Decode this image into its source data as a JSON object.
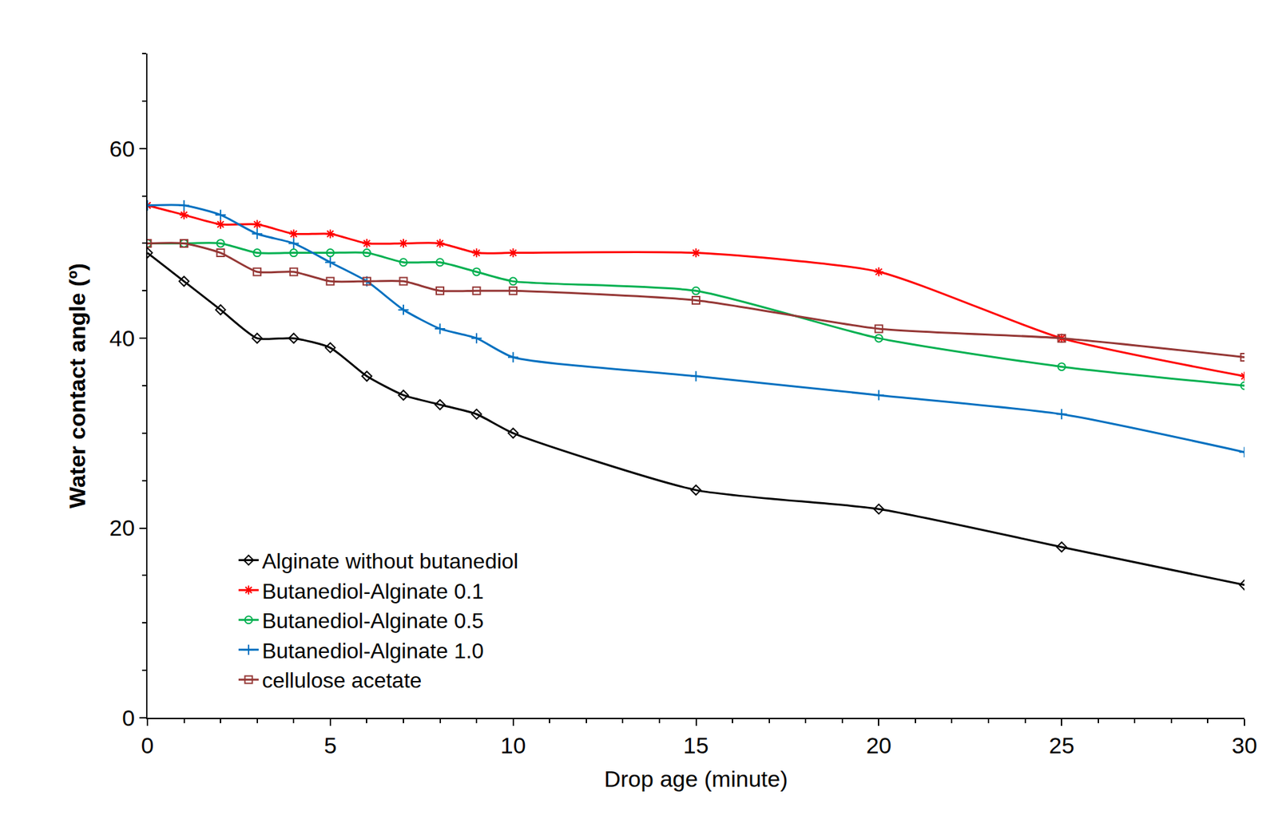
{
  "chart_data": {
    "type": "line",
    "x_label": "Drop age (minute)",
    "y_label": "Water contact angle (º)",
    "x": [
      0,
      1,
      2,
      3,
      4,
      5,
      6,
      7,
      8,
      9,
      10,
      15,
      20,
      25,
      30
    ],
    "xlim": [
      0,
      30
    ],
    "xticks": [
      0,
      5,
      10,
      15,
      20,
      25,
      30
    ],
    "ylim": [
      0,
      70
    ],
    "yticks": [
      0,
      20,
      40,
      60
    ],
    "grid": false,
    "legend": "bottom left",
    "series": [
      {
        "name": "Alginate without butanediol",
        "color": "#000000",
        "marker": "diamond-open",
        "line_style": "solid",
        "values": [
          49,
          46,
          43,
          40,
          40,
          39,
          36,
          34,
          33,
          32,
          30,
          24,
          22,
          18,
          14
        ]
      },
      {
        "name": "Butanediol-Alginate 0.1",
        "color": "#ff0000",
        "marker": "asterisk-open",
        "line_style": "solid",
        "values": [
          54,
          53,
          52,
          52,
          51,
          51,
          50,
          50,
          50,
          49,
          49,
          49,
          47,
          40,
          36
        ]
      },
      {
        "name": "Butanediol-Alginate 0.5",
        "color": "#00b050",
        "marker": "circle-open",
        "line_style": "solid",
        "values": [
          50,
          50,
          50,
          49,
          49,
          49,
          49,
          48,
          48,
          47,
          46,
          45,
          40,
          37,
          35
        ]
      },
      {
        "name": "Butanediol-Alginate 1.0",
        "color": "#0070c0",
        "marker": "cross-thin-open",
        "line_style": "solid",
        "values": [
          54,
          54,
          53,
          51,
          50,
          48,
          46,
          43,
          41,
          40,
          38,
          36,
          34,
          32,
          28
        ]
      },
      {
        "name": "cellulose acetate",
        "color": "#953735",
        "marker": "square-open",
        "line_style": "solid",
        "values": [
          50,
          50,
          49,
          47,
          47,
          46,
          46,
          46,
          45,
          45,
          45,
          44,
          41,
          40,
          38
        ]
      }
    ]
  }
}
